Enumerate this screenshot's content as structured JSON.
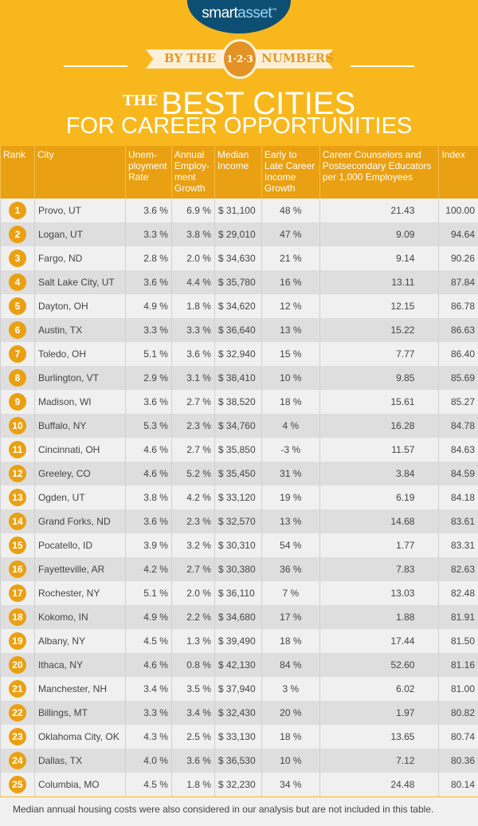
{
  "brand": {
    "logo_a": "smart",
    "logo_b": "asset",
    "tm": "™"
  },
  "banner": {
    "left": "BY THE",
    "coin": "1·2·3",
    "right": "NUMBERS"
  },
  "title": {
    "the": "THE",
    "line1": "BEST CITIES",
    "line2": "FOR CAREER OPPORTUNITIES"
  },
  "colors": {
    "background": "#f8b81d",
    "header": "#e9a012",
    "logo": "#0d4f73"
  },
  "table": {
    "headers": [
      "Rank",
      "City",
      "Unem-ployment Rate",
      "Annual Employ-ment Growth",
      "Median Income",
      "Early to Late Career Income Growth",
      "Career Counselors and Postsecondary Educators per 1,000 Employees",
      "Index"
    ],
    "rows": [
      [
        "1",
        "Provo, UT",
        "3.6 %",
        "6.9 %",
        "$ 31,100",
        "48 %",
        "21.43",
        "100.00"
      ],
      [
        "2",
        "Logan, UT",
        "3.3 %",
        "3.8 %",
        "$ 29,010",
        "47 %",
        "9.09",
        "94.64"
      ],
      [
        "3",
        "Fargo, ND",
        "2.8 %",
        "2.0 %",
        "$ 34,630",
        "21 %",
        "9.14",
        "90.26"
      ],
      [
        "4",
        "Salt Lake City, UT",
        "3.6 %",
        "4.4 %",
        "$ 35,780",
        "16 %",
        "13.11",
        "87.84"
      ],
      [
        "5",
        "Dayton, OH",
        "4.9 %",
        "1.8 %",
        "$ 34,620",
        "12 %",
        "12.15",
        "86.78"
      ],
      [
        "6",
        "Austin, TX",
        "3.3 %",
        "3.3 %",
        "$ 36,640",
        "13 %",
        "15.22",
        "86.63"
      ],
      [
        "7",
        "Toledo, OH",
        "5.1 %",
        "3.6 %",
        "$ 32,940",
        "15 %",
        "7.77",
        "86.40"
      ],
      [
        "8",
        "Burlington, VT",
        "2.9 %",
        "3.1 %",
        "$ 38,410",
        "10 %",
        "9.85",
        "85.69"
      ],
      [
        "9",
        "Madison, WI",
        "3.6 %",
        "2.7 %",
        "$ 38,520",
        "18 %",
        "15.61",
        "85.27"
      ],
      [
        "10",
        "Buffalo, NY",
        "5.3 %",
        "2.3 %",
        "$ 34,760",
        "4 %",
        "16.28",
        "84.78"
      ],
      [
        "11",
        "Cincinnati, OH",
        "4.6 %",
        "2.7 %",
        "$ 35,850",
        "-3 %",
        "11.57",
        "84.63"
      ],
      [
        "12",
        "Greeley, CO",
        "4.6 %",
        "5.2 %",
        "$ 35,450",
        "31 %",
        "3.84",
        "84.59"
      ],
      [
        "13",
        "Ogden, UT",
        "3.8 %",
        "4.2 %",
        "$ 33,120",
        "19 %",
        "6.19",
        "84.18"
      ],
      [
        "14",
        "Grand Forks, ND",
        "3.6 %",
        "2.3 %",
        "$ 32,570",
        "13 %",
        "14.68",
        "83.61"
      ],
      [
        "15",
        "Pocatello, ID",
        "3.9 %",
        "3.2 %",
        "$ 30,310",
        "54 %",
        "1.77",
        "83.31"
      ],
      [
        "16",
        "Fayetteville, AR",
        "4.2 %",
        "2.7 %",
        "$ 30,380",
        "36 %",
        "7.83",
        "82.63"
      ],
      [
        "17",
        "Rochester, NY",
        "5.1 %",
        "2.0 %",
        "$ 36,110",
        "7 %",
        "13.03",
        "82.48"
      ],
      [
        "18",
        "Kokomo, IN",
        "4.9 %",
        "2.2 %",
        "$ 34,680",
        "17 %",
        "1.88",
        "81.91"
      ],
      [
        "19",
        "Albany, NY",
        "4.5 %",
        "1.3 %",
        "$ 39,490",
        "18 %",
        "17.44",
        "81.50"
      ],
      [
        "20",
        "Ithaca, NY",
        "4.6 %",
        "0.8 %",
        "$ 42,130",
        "84 %",
        "52.60",
        "81.16"
      ],
      [
        "21",
        "Manchester, NH",
        "3.4 %",
        "3.5 %",
        "$ 37,940",
        "3 %",
        "6.02",
        "81.00"
      ],
      [
        "22",
        "Billings, MT",
        "3.3 %",
        "3.4 %",
        "$ 32,430",
        "20 %",
        "1.97",
        "80.82"
      ],
      [
        "23",
        "Oklahoma City, OK",
        "4.3 %",
        "2.5 %",
        "$ 33,130",
        "18 %",
        "13.65",
        "80.74"
      ],
      [
        "24",
        "Dallas, TX",
        "4.0 %",
        "3.6 %",
        "$ 36,530",
        "10 %",
        "7.12",
        "80.36"
      ],
      [
        "25",
        "Columbia, MO",
        "4.5 %",
        "1.8 %",
        "$ 32,230",
        "34 %",
        "24.48",
        "80.14"
      ]
    ]
  },
  "footnote": "Median annual housing costs were also considered in our analysis but are not included in this table."
}
